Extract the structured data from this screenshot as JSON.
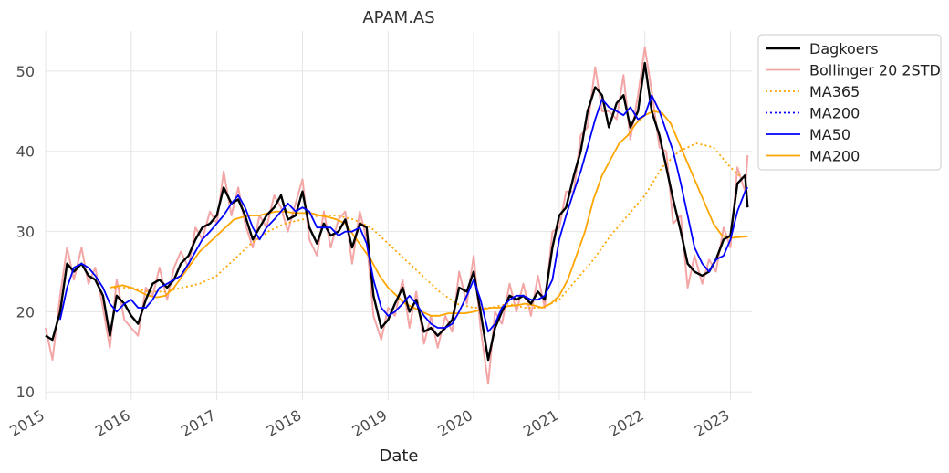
{
  "chart_data": {
    "type": "line",
    "title": "APAM.AS",
    "xlabel": "Date",
    "ylabel": "",
    "xlim": [
      2015.0,
      2023.25
    ],
    "ylim": [
      9,
      55
    ],
    "x_ticks": [
      2015,
      2016,
      2017,
      2018,
      2019,
      2020,
      2021,
      2022,
      2023
    ],
    "x_tick_labels": [
      "2015",
      "2016",
      "2017",
      "2018",
      "2019",
      "2020",
      "2021",
      "2022",
      "2023"
    ],
    "y_ticks": [
      10,
      20,
      30,
      40,
      50
    ],
    "y_tick_labels": [
      "10",
      "20",
      "30",
      "40",
      "50"
    ],
    "grid": true,
    "legend_position": "upper-right outside",
    "legend": [
      {
        "label": "Dagkoers",
        "color": "#000000",
        "style": "solid"
      },
      {
        "label": "Bollinger 20 2STD",
        "color": "#f4a6a6",
        "style": "solid"
      },
      {
        "label": "MA365",
        "color": "#ffa500",
        "style": "dotted"
      },
      {
        "label": "MA200",
        "color": "#0000ff",
        "style": "dotted"
      },
      {
        "label": "MA50",
        "color": "#0000ff",
        "style": "solid"
      },
      {
        "label": "MA200",
        "color": "#ffa500",
        "style": "solid"
      }
    ],
    "series": [
      {
        "name": "Dagkoers",
        "color": "#000000",
        "x": [
          2015.0,
          2015.08,
          2015.17,
          2015.25,
          2015.33,
          2015.42,
          2015.5,
          2015.58,
          2015.67,
          2015.75,
          2015.83,
          2015.92,
          2016.0,
          2016.08,
          2016.17,
          2016.25,
          2016.33,
          2016.42,
          2016.5,
          2016.58,
          2016.67,
          2016.75,
          2016.83,
          2016.92,
          2017.0,
          2017.08,
          2017.17,
          2017.25,
          2017.33,
          2017.42,
          2017.5,
          2017.58,
          2017.67,
          2017.75,
          2017.83,
          2017.92,
          2018.0,
          2018.08,
          2018.17,
          2018.25,
          2018.33,
          2018.42,
          2018.5,
          2018.58,
          2018.67,
          2018.75,
          2018.83,
          2018.92,
          2019.0,
          2019.08,
          2019.17,
          2019.25,
          2019.33,
          2019.42,
          2019.5,
          2019.58,
          2019.67,
          2019.75,
          2019.83,
          2019.92,
          2020.0,
          2020.08,
          2020.17,
          2020.25,
          2020.33,
          2020.42,
          2020.5,
          2020.58,
          2020.67,
          2020.75,
          2020.83,
          2020.92,
          2021.0,
          2021.08,
          2021.17,
          2021.25,
          2021.33,
          2021.42,
          2021.5,
          2021.58,
          2021.67,
          2021.75,
          2021.83,
          2021.92,
          2022.0,
          2022.08,
          2022.17,
          2022.25,
          2022.33,
          2022.42,
          2022.5,
          2022.58,
          2022.67,
          2022.75,
          2022.83,
          2022.92,
          2023.0,
          2023.08,
          2023.17,
          2023.2
        ],
        "values": [
          17.0,
          16.5,
          20.0,
          26.0,
          25.0,
          26.0,
          24.5,
          24.0,
          22.0,
          17.0,
          22.0,
          21.0,
          19.5,
          18.5,
          21.5,
          23.5,
          24.0,
          23.0,
          24.0,
          26.0,
          27.0,
          29.0,
          30.5,
          31.0,
          32.0,
          35.5,
          33.5,
          34.0,
          32.0,
          29.0,
          30.5,
          32.0,
          33.0,
          34.5,
          31.5,
          32.0,
          35.0,
          30.5,
          28.5,
          31.0,
          29.5,
          30.0,
          31.5,
          28.0,
          31.0,
          30.5,
          22.0,
          18.0,
          19.0,
          21.0,
          23.0,
          20.0,
          21.5,
          17.5,
          18.0,
          17.0,
          18.0,
          19.0,
          23.0,
          22.5,
          25.0,
          20.0,
          14.0,
          18.0,
          20.0,
          22.0,
          21.5,
          22.0,
          21.0,
          22.5,
          21.5,
          28.0,
          32.0,
          33.0,
          37.0,
          40.0,
          45.0,
          48.0,
          47.0,
          43.0,
          46.0,
          47.0,
          43.0,
          45.0,
          51.0,
          45.0,
          42.0,
          38.0,
          34.0,
          30.0,
          26.0,
          25.0,
          24.5,
          25.0,
          26.5,
          29.0,
          29.5,
          36.0,
          37.0,
          33.0
        ]
      },
      {
        "name": "Bollinger 20 2STD",
        "color": "#f4a6a6",
        "x": [
          2015.0,
          2015.08,
          2015.17,
          2015.25,
          2015.33,
          2015.42,
          2015.5,
          2015.58,
          2015.67,
          2015.75,
          2015.83,
          2015.92,
          2016.0,
          2016.08,
          2016.17,
          2016.25,
          2016.33,
          2016.42,
          2016.5,
          2016.58,
          2016.67,
          2016.75,
          2016.83,
          2016.92,
          2017.0,
          2017.08,
          2017.17,
          2017.25,
          2017.33,
          2017.42,
          2017.5,
          2017.58,
          2017.67,
          2017.75,
          2017.83,
          2017.92,
          2018.0,
          2018.08,
          2018.17,
          2018.25,
          2018.33,
          2018.42,
          2018.5,
          2018.58,
          2018.67,
          2018.75,
          2018.83,
          2018.92,
          2019.0,
          2019.08,
          2019.17,
          2019.25,
          2019.33,
          2019.42,
          2019.5,
          2019.58,
          2019.67,
          2019.75,
          2019.83,
          2019.92,
          2020.0,
          2020.08,
          2020.17,
          2020.25,
          2020.33,
          2020.42,
          2020.5,
          2020.58,
          2020.67,
          2020.75,
          2020.83,
          2020.92,
          2021.0,
          2021.08,
          2021.17,
          2021.25,
          2021.33,
          2021.42,
          2021.5,
          2021.58,
          2021.67,
          2021.75,
          2021.83,
          2021.92,
          2022.0,
          2022.08,
          2022.17,
          2022.25,
          2022.33,
          2022.42,
          2022.5,
          2022.58,
          2022.67,
          2022.75,
          2022.83,
          2022.92,
          2023.0,
          2023.08,
          2023.17,
          2023.2
        ],
        "values": [
          18.0,
          14.0,
          22.0,
          28.0,
          24.0,
          28.0,
          23.5,
          25.5,
          20.5,
          15.5,
          24.0,
          19.0,
          18.0,
          17.0,
          23.0,
          22.0,
          25.5,
          21.5,
          25.5,
          27.5,
          25.5,
          30.5,
          29.0,
          32.5,
          31.0,
          37.5,
          32.0,
          35.5,
          31.0,
          28.0,
          32.0,
          30.5,
          34.5,
          33.0,
          30.0,
          33.5,
          36.5,
          29.0,
          27.0,
          32.5,
          28.0,
          31.5,
          32.5,
          26.0,
          32.5,
          29.0,
          19.5,
          16.5,
          20.5,
          19.5,
          24.0,
          18.0,
          22.5,
          16.0,
          19.5,
          15.5,
          19.5,
          17.5,
          25.0,
          21.0,
          27.0,
          18.0,
          11.0,
          20.0,
          18.5,
          23.5,
          20.0,
          23.5,
          19.5,
          24.5,
          20.5,
          30.0,
          30.5,
          35.0,
          35.0,
          42.0,
          43.0,
          50.5,
          45.0,
          45.0,
          44.0,
          49.5,
          41.5,
          47.0,
          53.0,
          47.5,
          40.5,
          40.0,
          31.0,
          32.0,
          23.0,
          27.0,
          23.5,
          26.5,
          25.0,
          30.5,
          28.0,
          38.0,
          35.0,
          39.5
        ]
      },
      {
        "name": "MA365",
        "color": "#ffa500",
        "x": [
          2015.8,
          2016.0,
          2016.2,
          2016.4,
          2016.6,
          2016.8,
          2017.0,
          2017.2,
          2017.4,
          2017.6,
          2017.8,
          2018.0,
          2018.2,
          2018.4,
          2018.6,
          2018.8,
          2019.0,
          2019.2,
          2019.4,
          2019.6,
          2019.8,
          2020.0,
          2020.2,
          2020.4,
          2020.6,
          2020.8,
          2021.0,
          2021.2,
          2021.4,
          2021.6,
          2021.8,
          2022.0,
          2022.2,
          2022.4,
          2022.6,
          2022.8,
          2023.0,
          2023.2
        ],
        "values": [
          23.0,
          23.0,
          22.5,
          22.5,
          23.0,
          23.5,
          24.5,
          26.5,
          28.5,
          30.0,
          31.0,
          31.5,
          32.0,
          32.0,
          31.5,
          30.5,
          28.5,
          26.5,
          24.5,
          22.5,
          21.0,
          20.5,
          20.5,
          21.0,
          20.5,
          20.5,
          21.5,
          24.0,
          26.5,
          29.5,
          32.0,
          34.5,
          38.0,
          40.0,
          41.0,
          40.5,
          38.0,
          36.0
        ]
      },
      {
        "name": "MA50",
        "color": "#0000ff",
        "x": [
          2015.17,
          2015.25,
          2015.33,
          2015.42,
          2015.5,
          2015.58,
          2015.67,
          2015.75,
          2015.83,
          2015.92,
          2016.0,
          2016.08,
          2016.17,
          2016.25,
          2016.33,
          2016.42,
          2016.5,
          2016.58,
          2016.67,
          2016.75,
          2016.83,
          2016.92,
          2017.0,
          2017.08,
          2017.17,
          2017.25,
          2017.33,
          2017.42,
          2017.5,
          2017.58,
          2017.67,
          2017.75,
          2017.83,
          2017.92,
          2018.0,
          2018.08,
          2018.17,
          2018.25,
          2018.33,
          2018.42,
          2018.5,
          2018.58,
          2018.67,
          2018.75,
          2018.83,
          2018.92,
          2019.0,
          2019.08,
          2019.17,
          2019.25,
          2019.33,
          2019.42,
          2019.5,
          2019.58,
          2019.67,
          2019.75,
          2019.83,
          2019.92,
          2020.0,
          2020.08,
          2020.17,
          2020.25,
          2020.33,
          2020.42,
          2020.5,
          2020.58,
          2020.67,
          2020.75,
          2020.83,
          2020.92,
          2021.0,
          2021.08,
          2021.17,
          2021.25,
          2021.33,
          2021.42,
          2021.5,
          2021.58,
          2021.67,
          2021.75,
          2021.83,
          2021.92,
          2022.0,
          2022.08,
          2022.17,
          2022.25,
          2022.33,
          2022.42,
          2022.5,
          2022.58,
          2022.67,
          2022.75,
          2022.83,
          2022.92,
          2023.0,
          2023.08,
          2023.17,
          2023.2
        ],
        "values": [
          19.0,
          23.0,
          25.5,
          26.0,
          25.5,
          24.5,
          23.0,
          21.0,
          20.0,
          21.0,
          21.5,
          20.5,
          20.5,
          21.5,
          23.0,
          23.5,
          24.0,
          24.5,
          26.0,
          27.5,
          29.0,
          30.0,
          31.0,
          32.0,
          33.5,
          34.5,
          33.0,
          30.5,
          29.0,
          30.5,
          31.5,
          32.5,
          33.5,
          32.5,
          33.0,
          32.5,
          30.5,
          30.5,
          30.5,
          29.5,
          30.0,
          30.0,
          30.5,
          28.5,
          24.0,
          20.5,
          19.5,
          20.0,
          21.0,
          22.0,
          21.0,
          19.5,
          18.5,
          18.0,
          18.0,
          18.5,
          20.0,
          22.0,
          24.0,
          21.5,
          17.5,
          18.5,
          20.5,
          21.5,
          22.0,
          22.0,
          21.5,
          21.5,
          22.0,
          24.0,
          29.0,
          32.0,
          35.0,
          37.5,
          40.5,
          44.0,
          46.5,
          45.5,
          45.0,
          44.5,
          45.5,
          44.0,
          44.5,
          47.0,
          45.0,
          42.5,
          40.0,
          36.0,
          32.0,
          28.0,
          26.0,
          25.0,
          26.5,
          27.0,
          29.0,
          32.5,
          35.0,
          35.5
        ]
      },
      {
        "name": "MA200",
        "color": "#ffa500",
        "x": [
          2015.75,
          2015.9,
          2016.0,
          2016.1,
          2016.2,
          2016.3,
          2016.4,
          2016.5,
          2016.6,
          2016.7,
          2016.8,
          2016.9,
          2017.0,
          2017.1,
          2017.2,
          2017.3,
          2017.4,
          2017.5,
          2017.6,
          2017.7,
          2017.8,
          2017.9,
          2018.0,
          2018.1,
          2018.2,
          2018.3,
          2018.4,
          2018.5,
          2018.6,
          2018.7,
          2018.8,
          2018.9,
          2019.0,
          2019.1,
          2019.2,
          2019.3,
          2019.4,
          2019.5,
          2019.6,
          2019.7,
          2019.8,
          2019.9,
          2020.0,
          2020.1,
          2020.2,
          2020.3,
          2020.4,
          2020.5,
          2020.6,
          2020.7,
          2020.8,
          2020.9,
          2021.0,
          2021.1,
          2021.2,
          2021.3,
          2021.4,
          2021.5,
          2021.6,
          2021.7,
          2021.8,
          2021.9,
          2022.0,
          2022.1,
          2022.2,
          2022.3,
          2022.4,
          2022.5,
          2022.6,
          2022.7,
          2022.8,
          2022.9,
          2023.0,
          2023.1,
          2023.2
        ],
        "values": [
          23.0,
          23.3,
          23.0,
          22.5,
          22.0,
          21.8,
          22.0,
          23.0,
          24.5,
          26.0,
          27.5,
          28.5,
          29.5,
          30.5,
          31.5,
          31.8,
          32.0,
          32.0,
          32.3,
          32.5,
          32.5,
          32.3,
          32.3,
          32.3,
          32.0,
          31.8,
          31.5,
          31.0,
          29.5,
          28.0,
          26.5,
          24.5,
          23.0,
          22.0,
          21.0,
          20.5,
          20.0,
          19.5,
          19.5,
          19.8,
          19.8,
          19.8,
          20.0,
          20.3,
          20.5,
          20.5,
          20.7,
          20.8,
          21.0,
          20.8,
          20.5,
          21.0,
          22.0,
          24.0,
          27.0,
          30.0,
          34.0,
          37.0,
          39.0,
          41.0,
          42.0,
          43.5,
          44.5,
          45.0,
          44.8,
          43.5,
          41.0,
          38.5,
          36.0,
          33.5,
          31.0,
          29.5,
          29.2,
          29.3,
          29.4
        ]
      }
    ]
  }
}
